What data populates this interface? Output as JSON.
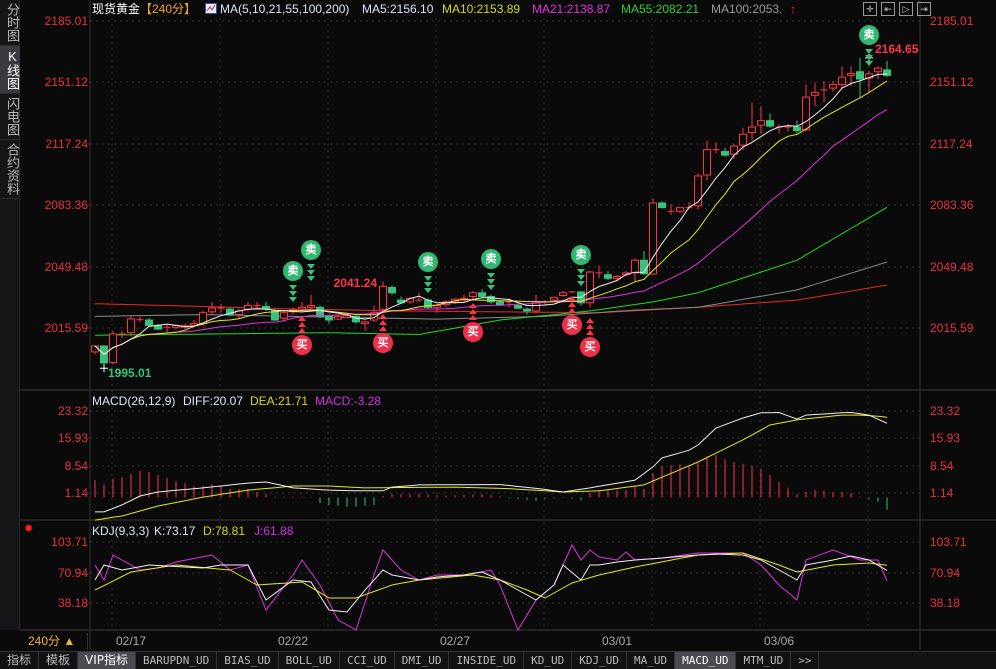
{
  "sidebar": {
    "items": [
      {
        "label": "分时图"
      },
      {
        "label": "K线图",
        "active": true
      },
      {
        "label": "闪电图"
      },
      {
        "label": "合约资料"
      }
    ]
  },
  "header": {
    "instrument": "现货黄金",
    "period": "【240分】",
    "ma_icon": "ma-chart-icon",
    "ma_params": "MA(5,10,21,55,100,200)",
    "ma5": "MA5:2156.10",
    "ma10": "MA10:2153.89",
    "ma21": "MA21:2138.87",
    "ma55": "MA55:2082.21",
    "ma100": "MA100:2053.",
    "arrow_icon": "up-arrow-icon"
  },
  "toolbar_icons": [
    "crosshair-icon",
    "zoom-start-icon",
    "play-icon",
    "exit-icon"
  ],
  "price_axis": [
    "2185.01",
    "2151.12",
    "2117.24",
    "2083.36",
    "2049.48",
    "2015.59"
  ],
  "macd": {
    "title": "MACD(26,12,9)",
    "diff": "DIFF:20.07",
    "dea": "DEA:21.71",
    "macd": "MACD:-3.28",
    "axis": [
      "23.32",
      "15.93",
      "8.54",
      "1.14"
    ]
  },
  "kdj": {
    "title": "KDJ(9,3,3)",
    "k": "K:73.17",
    "d": "D:78.81",
    "j": "J:61.88",
    "axis": [
      "103.71",
      "70.94",
      "38.18"
    ]
  },
  "time_axis": [
    {
      "label": "02/17",
      "index": 4
    },
    {
      "label": "02/22",
      "index": 22
    },
    {
      "label": "02/27",
      "index": 40
    },
    {
      "label": "03/01",
      "index": 58
    },
    {
      "label": "03/06",
      "index": 76
    }
  ],
  "period_selector": "240分 ▲",
  "tabs": [
    {
      "label": "指标"
    },
    {
      "label": "模板"
    },
    {
      "label": "VIP指标",
      "active": true
    },
    {
      "label": "BARUPDN_UD"
    },
    {
      "label": "BIAS_UD"
    },
    {
      "label": "BOLL_UD"
    },
    {
      "label": "CCI_UD"
    },
    {
      "label": "DMI_UD"
    },
    {
      "label": "INSIDE_UD"
    },
    {
      "label": "KD_UD"
    },
    {
      "label": "KDJ_UD"
    },
    {
      "label": "MA_UD"
    },
    {
      "label": "MACD_UD",
      "active": true
    },
    {
      "label": "MTM_UD"
    },
    {
      "label": ">>"
    }
  ],
  "annotations": {
    "high": "2164.65",
    "mid": "2041.24",
    "low": "1995.01"
  },
  "signals": {
    "sell_label": "卖",
    "buy_label": "买",
    "sell": [
      22,
      24,
      37,
      44,
      54,
      86
    ],
    "buy": [
      23,
      32,
      42,
      53,
      55
    ]
  },
  "colors": {
    "up": "#ff3346",
    "down": "#34c47c",
    "ma5": "#f0f0f0",
    "ma10": "#e8e820",
    "ma21": "#e030e0",
    "ma55": "#22d822",
    "ma100": "#8a8a8a",
    "ma200": "#e82828",
    "axis": "#e8303c"
  },
  "chart_data": {
    "type": "candlestick",
    "ylim": [
      1985,
      2190
    ],
    "ohlc": [
      [
        2002.4,
        2006,
        2001,
        2005.7
      ],
      [
        2005.7,
        2006,
        1995.01,
        1996.3
      ],
      [
        1996.5,
        2014,
        1995.5,
        2012.3
      ],
      [
        2012,
        2014,
        2010,
        2012.3
      ],
      [
        2013,
        2022,
        2011,
        2020.6
      ],
      [
        2020,
        2022,
        2019,
        2020.2
      ],
      [
        2020,
        2021,
        2016,
        2017
      ],
      [
        2017,
        2018,
        2014.5,
        2015
      ],
      [
        2016,
        2017.5,
        2013,
        2016
      ],
      [
        2016,
        2017.5,
        2015,
        2017
      ],
      [
        2016,
        2018,
        2015,
        2016.8
      ],
      [
        2017,
        2020,
        2016,
        2018
      ],
      [
        2018,
        2025,
        2017,
        2024
      ],
      [
        2024.5,
        2030,
        2023,
        2026.6
      ],
      [
        2026.6,
        2029,
        2024,
        2026.6
      ],
      [
        2026,
        2027,
        2022,
        2023
      ],
      [
        2023,
        2026,
        2021,
        2025
      ],
      [
        2026,
        2030,
        2025,
        2028
      ],
      [
        2028,
        2030,
        2026,
        2028
      ],
      [
        2027.5,
        2030,
        2025,
        2026
      ],
      [
        2025,
        2026,
        2019.5,
        2020
      ],
      [
        2021,
        2025,
        2019,
        2024
      ],
      [
        2024.5,
        2027,
        2023,
        2025.5
      ],
      [
        2026,
        2030,
        2024,
        2027
      ],
      [
        2027,
        2034,
        2026,
        2028
      ],
      [
        2027,
        2028,
        2021,
        2022
      ],
      [
        2022,
        2023,
        2018,
        2020
      ],
      [
        2020.5,
        2023,
        2020,
        2022
      ],
      [
        2021.5,
        2023,
        2021,
        2022.5
      ],
      [
        2022,
        2023,
        2018,
        2019
      ],
      [
        2018,
        2019.5,
        2014,
        2019
      ],
      [
        2020,
        2028,
        2019,
        2024
      ],
      [
        2026,
        2041.24,
        2025,
        2038.6
      ],
      [
        2038,
        2039,
        2034,
        2035
      ],
      [
        2031,
        2033,
        2029,
        2029.5
      ],
      [
        2030,
        2032.5,
        2029,
        2032
      ],
      [
        2031,
        2035,
        2030,
        2031
      ],
      [
        2031,
        2032,
        2026,
        2027
      ],
      [
        2027,
        2029,
        2024,
        2028
      ],
      [
        2028.5,
        2031,
        2027,
        2030
      ],
      [
        2030,
        2032,
        2029,
        2031.5
      ],
      [
        2031,
        2034,
        2030,
        2032
      ],
      [
        2033,
        2036,
        2031,
        2035
      ],
      [
        2035,
        2037,
        2032,
        2033
      ],
      [
        2033,
        2034,
        2029,
        2030
      ],
      [
        2030,
        2031,
        2028,
        2028.5
      ],
      [
        2030,
        2032,
        2027,
        2030
      ],
      [
        2028,
        2029,
        2026,
        2026.5
      ],
      [
        2026,
        2027,
        2023,
        2025
      ],
      [
        2025,
        2034,
        2024,
        2030
      ],
      [
        2030,
        2031,
        2028,
        2030
      ],
      [
        2031,
        2033,
        2030,
        2032.5
      ],
      [
        2033.5,
        2036,
        2033,
        2035
      ],
      [
        2035.5,
        2036,
        2035,
        2035.5
      ],
      [
        2035.5,
        2036,
        2028,
        2029.5
      ],
      [
        2029.5,
        2047,
        2027,
        2046.5
      ],
      [
        2046,
        2050,
        2043,
        2046
      ],
      [
        2045,
        2047,
        2042,
        2043
      ],
      [
        2043,
        2045,
        2042,
        2044
      ],
      [
        2045,
        2047,
        2044,
        2046
      ],
      [
        2046,
        2054,
        2041,
        2053
      ],
      [
        2053,
        2058,
        2045,
        2045.5
      ],
      [
        2045.4,
        2087,
        2045,
        2084.6
      ],
      [
        2084.6,
        2085.5,
        2082,
        2082
      ],
      [
        2080,
        2084,
        2078,
        2080
      ],
      [
        2080,
        2082,
        2079,
        2082
      ],
      [
        2082,
        2085,
        2081,
        2082
      ],
      [
        2083,
        2101,
        2081,
        2099.5
      ],
      [
        2100,
        2119,
        2097,
        2114
      ],
      [
        2114,
        2118,
        2112,
        2114
      ],
      [
        2113,
        2115,
        2110,
        2111
      ],
      [
        2111.5,
        2117,
        2109,
        2116
      ],
      [
        2116.5,
        2126,
        2114,
        2122.5
      ],
      [
        2123.5,
        2140,
        2119,
        2126.5
      ],
      [
        2127.5,
        2138,
        2123,
        2130
      ],
      [
        2130,
        2134,
        2126,
        2127
      ],
      [
        2126.5,
        2128,
        2123,
        2126.5
      ],
      [
        2126.5,
        2128,
        2124,
        2126.5
      ],
      [
        2126.5,
        2130,
        2123,
        2124.5
      ],
      [
        2125,
        2150,
        2124,
        2143
      ],
      [
        2144,
        2151,
        2138,
        2145.5
      ],
      [
        2147,
        2152,
        2140,
        2147
      ],
      [
        2148,
        2152,
        2146,
        2150
      ],
      [
        2150,
        2160,
        2148,
        2154
      ],
      [
        2155,
        2160,
        2149,
        2156
      ],
      [
        2157,
        2164.65,
        2143,
        2153
      ],
      [
        2153.5,
        2157.5,
        2145,
        2155.8
      ],
      [
        2157,
        2160,
        2153,
        2159
      ],
      [
        2158,
        2163,
        2154,
        2155
      ]
    ],
    "ma_long": {
      "ma55": [
        [
          0,
          2011.6
        ],
        [
          26,
          2013
        ],
        [
          36,
          2012
        ],
        [
          45,
          2020
        ],
        [
          55,
          2025
        ],
        [
          62,
          2030
        ],
        [
          67,
          2035
        ],
        [
          78,
          2053
        ],
        [
          88,
          2082.21
        ]
      ],
      "ma100": [
        [
          0,
          2022
        ],
        [
          12,
          2023
        ],
        [
          32,
          2021
        ],
        [
          38,
          2020.5
        ],
        [
          50,
          2022
        ],
        [
          60,
          2025.5
        ],
        [
          67,
          2027
        ],
        [
          78,
          2036.6
        ],
        [
          88,
          2052
        ]
      ],
      "ma200": [
        [
          0,
          2029
        ],
        [
          23,
          2026
        ],
        [
          34,
          2025
        ],
        [
          56,
          2024
        ],
        [
          67,
          2027
        ],
        [
          78,
          2031
        ],
        [
          88,
          2039.3
        ]
      ]
    },
    "macd_hist": [
      4.7,
      3.6,
      5,
      5.5,
      6.4,
      7.2,
      6.9,
      6.1,
      5.3,
      4.5,
      3.9,
      3.1,
      3.1,
      3.6,
      3.1,
      2.3,
      2.3,
      2.3,
      1.5,
      0.9,
      0.2,
      0.2,
      0.2,
      0.2,
      0.1,
      -1.5,
      -2,
      -2.2,
      -2.5,
      -2.5,
      -2.2,
      -2,
      0.4,
      1,
      0.9,
      0.9,
      1,
      0.8,
      0.6,
      0.5,
      0.6,
      0.7,
      0.8,
      0.9,
      0.7,
      0.3,
      -0.2,
      -0.4,
      -0.6,
      -0.8,
      -0.3,
      -0.2,
      -0.1,
      -0.3,
      -0.7,
      1.2,
      2,
      2,
      2,
      2,
      3.1,
      2.3,
      6.6,
      8.5,
      8.8,
      9,
      8.5,
      9.3,
      11.2,
      11.5,
      10.4,
      9.6,
      9.1,
      8.5,
      7.7,
      6.1,
      4.2,
      2.6,
      0.9,
      1.5,
      2,
      1.8,
      1.5,
      1.5,
      1.2,
      0.2,
      -0.4,
      -1.2,
      -3.28
    ],
    "diff": [
      [
        0,
        -3.9
      ],
      [
        1,
        -3.9
      ],
      [
        3,
        -2
      ],
      [
        5,
        0.4
      ],
      [
        7,
        1.5
      ],
      [
        12,
        2.6
      ],
      [
        17,
        3.9
      ],
      [
        19,
        4.2
      ],
      [
        22,
        2.6
      ],
      [
        26,
        2
      ],
      [
        29,
        1.8
      ],
      [
        32,
        1.8
      ],
      [
        33,
        2.8
      ],
      [
        36,
        3.4
      ],
      [
        45,
        3.5
      ],
      [
        50,
        2.2
      ],
      [
        52,
        1.5
      ],
      [
        55,
        2.6
      ],
      [
        60,
        4.7
      ],
      [
        62,
        8.3
      ],
      [
        63,
        10.7
      ],
      [
        66,
        12.8
      ],
      [
        67,
        14.2
      ],
      [
        69,
        18.8
      ],
      [
        72,
        21.5
      ],
      [
        74,
        22.9
      ],
      [
        76,
        23
      ],
      [
        78,
        21.2
      ],
      [
        79,
        22.3
      ],
      [
        83,
        22.9
      ],
      [
        84,
        23
      ],
      [
        86,
        22.3
      ],
      [
        88,
        20.07
      ]
    ],
    "dea": [
      [
        0,
        -6.1
      ],
      [
        3,
        -5
      ],
      [
        7,
        -2.3
      ],
      [
        12,
        0.1
      ],
      [
        17,
        2
      ],
      [
        22,
        3.1
      ],
      [
        26,
        3.1
      ],
      [
        30,
        2.6
      ],
      [
        34,
        2.7
      ],
      [
        40,
        2.8
      ],
      [
        46,
        2.4
      ],
      [
        52,
        1.5
      ],
      [
        56,
        1.8
      ],
      [
        61,
        3.4
      ],
      [
        63,
        5.5
      ],
      [
        67,
        9.6
      ],
      [
        72,
        15.6
      ],
      [
        75,
        19.6
      ],
      [
        78,
        21
      ],
      [
        83,
        22.3
      ],
      [
        85,
        22.3
      ],
      [
        87,
        22
      ],
      [
        88,
        21.71
      ]
    ],
    "k": [
      [
        0,
        62.9
      ],
      [
        1,
        79
      ],
      [
        3,
        73.6
      ],
      [
        6,
        79
      ],
      [
        12,
        75.8
      ],
      [
        14,
        79
      ],
      [
        17,
        79
      ],
      [
        19,
        41.4
      ],
      [
        22,
        62.9
      ],
      [
        24,
        60.7
      ],
      [
        26,
        30.7
      ],
      [
        28,
        28.5
      ],
      [
        30,
        52
      ],
      [
        32,
        73.6
      ],
      [
        33,
        68.3
      ],
      [
        36,
        62.9
      ],
      [
        38,
        66.1
      ],
      [
        41,
        68.3
      ],
      [
        43,
        71.5
      ],
      [
        45,
        62.9
      ],
      [
        47,
        52.1
      ],
      [
        49,
        41.4
      ],
      [
        51,
        57.5
      ],
      [
        52,
        79
      ],
      [
        54,
        62.9
      ],
      [
        55,
        79
      ],
      [
        56,
        79
      ],
      [
        58,
        82.2
      ],
      [
        60,
        84.4
      ],
      [
        63,
        86.5
      ],
      [
        67,
        89.7
      ],
      [
        69,
        90.8
      ],
      [
        72,
        89.7
      ],
      [
        74,
        84.4
      ],
      [
        76,
        73.6
      ],
      [
        78,
        62.9
      ],
      [
        79,
        79
      ],
      [
        82,
        84.4
      ],
      [
        84,
        88.7
      ],
      [
        86,
        84.4
      ],
      [
        88,
        73.17
      ]
    ],
    "d": [
      [
        0,
        52
      ],
      [
        4,
        71.5
      ],
      [
        9,
        79
      ],
      [
        15,
        73.6
      ],
      [
        18,
        57.5
      ],
      [
        23,
        60.7
      ],
      [
        26,
        43.6
      ],
      [
        29,
        43.6
      ],
      [
        33,
        57.5
      ],
      [
        36,
        62.9
      ],
      [
        42,
        68.3
      ],
      [
        45,
        62.9
      ],
      [
        48,
        52.1
      ],
      [
        50,
        43.6
      ],
      [
        53,
        59.7
      ],
      [
        56,
        68.3
      ],
      [
        60,
        76.9
      ],
      [
        67,
        89.7
      ],
      [
        72,
        91.9
      ],
      [
        76,
        79
      ],
      [
        78,
        71.5
      ],
      [
        82,
        79
      ],
      [
        86,
        81.2
      ],
      [
        88,
        78.81
      ]
    ],
    "j": [
      [
        0,
        79
      ],
      [
        1,
        62.9
      ],
      [
        2,
        89.7
      ],
      [
        5,
        73.6
      ],
      [
        7,
        75.8
      ],
      [
        9,
        82.2
      ],
      [
        13,
        89.7
      ],
      [
        15,
        73.6
      ],
      [
        17,
        79
      ],
      [
        19,
        30.7
      ],
      [
        22,
        68.3
      ],
      [
        23,
        84.4
      ],
      [
        25,
        57.5
      ],
      [
        27,
        20
      ],
      [
        29,
        9.2
      ],
      [
        31,
        68.3
      ],
      [
        32,
        95.1
      ],
      [
        34,
        73.6
      ],
      [
        36,
        62.9
      ],
      [
        38,
        68.3
      ],
      [
        41,
        68.3
      ],
      [
        44,
        73.6
      ],
      [
        45,
        57.5
      ],
      [
        47,
        9.2
      ],
      [
        49,
        41.4
      ],
      [
        51,
        57.5
      ],
      [
        52,
        79
      ],
      [
        53,
        100.5
      ],
      [
        54,
        84.4
      ],
      [
        55,
        95.1
      ],
      [
        56,
        87.6
      ],
      [
        58,
        84.4
      ],
      [
        59,
        93
      ],
      [
        60,
        84.4
      ],
      [
        63,
        86.5
      ],
      [
        67,
        91.9
      ],
      [
        72,
        91.9
      ],
      [
        74,
        79
      ],
      [
        76,
        57.5
      ],
      [
        78,
        41.4
      ],
      [
        79,
        84.4
      ],
      [
        82,
        95.1
      ],
      [
        85,
        84.4
      ],
      [
        87,
        84.4
      ],
      [
        88,
        61.88
      ]
    ]
  }
}
